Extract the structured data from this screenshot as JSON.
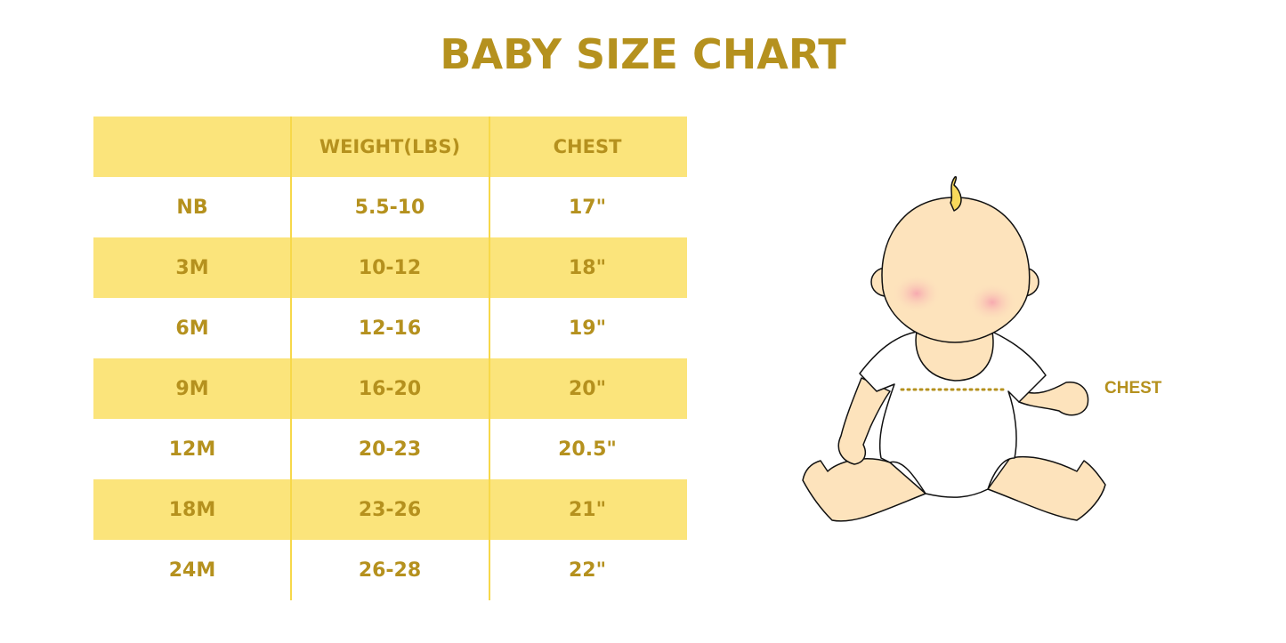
{
  "title": "BABY SIZE CHART",
  "table": {
    "headers": [
      "",
      "WEIGHT(LBS)",
      "CHEST"
    ],
    "rows": [
      [
        "NB",
        "5.5-10",
        "17\""
      ],
      [
        "3M",
        "10-12",
        "18\""
      ],
      [
        "6M",
        "12-16",
        "19\""
      ],
      [
        "9M",
        "16-20",
        "20\""
      ],
      [
        "12M",
        "20-23",
        "20.5\""
      ],
      [
        "18M",
        "23-26",
        "21\""
      ],
      [
        "24M",
        "26-28",
        "22\""
      ]
    ]
  },
  "illustration": {
    "chest_label": "CHEST"
  },
  "colors": {
    "accent_text": "#B5911E",
    "band": "#FBE47B",
    "skin": "#FDE3BC"
  }
}
